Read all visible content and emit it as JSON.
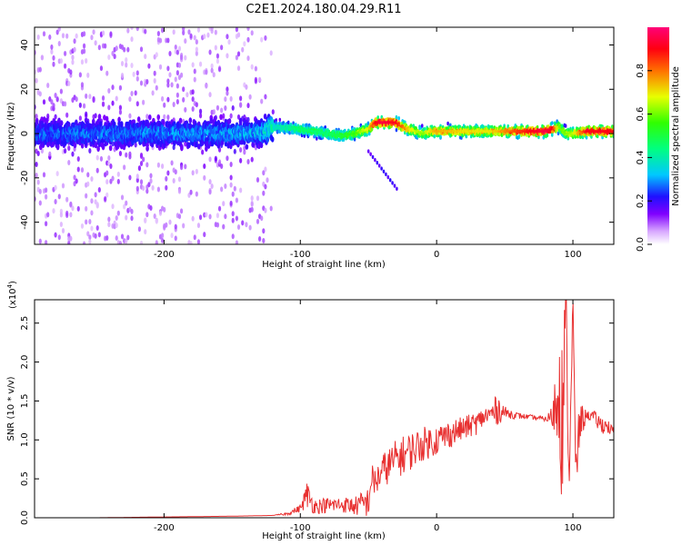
{
  "figure": {
    "title": "C2E1.2024.180.04.29.R11"
  },
  "chart_data": [
    {
      "type": "heatmap",
      "xlabel": "Height of straight line (km)",
      "ylabel": "Frequency (Hz)",
      "xlim": [
        -295,
        130
      ],
      "ylim": [
        -50,
        48
      ],
      "xticks": [
        -200,
        -100,
        0,
        100
      ],
      "yticks": [
        -40,
        -20,
        0,
        20,
        40
      ],
      "colorbar": {
        "label": "Normalized spectral amplitude",
        "range": [
          0.0,
          1.0
        ],
        "ticks": [
          0.0,
          0.2,
          0.4,
          0.6,
          0.8
        ],
        "tick_labels": [
          "0.0",
          "0.2",
          "0.4",
          "0.6",
          "0.8"
        ],
        "colormap": "rainbow (white→violet→blue→cyan→green→yellow→red→magenta)"
      },
      "ridge": {
        "description": "dominant frequency track (centre of the bright band)",
        "x": [
          -295,
          -200,
          -130,
          -120,
          -100,
          -80,
          -70,
          -60,
          -50,
          -45,
          -40,
          -30,
          -25,
          -20,
          -15,
          -10,
          -5,
          0,
          20,
          40,
          60,
          80,
          85,
          90,
          95,
          100,
          110,
          130
        ],
        "y": [
          0,
          0,
          0,
          3,
          2,
          0,
          -1,
          0,
          2,
          5,
          5,
          5,
          3,
          2,
          1,
          0,
          1,
          1,
          1,
          1,
          1,
          1,
          2,
          3,
          0,
          0,
          1,
          1
        ],
        "peak_amplitude": [
          0.2,
          0.22,
          0.25,
          0.35,
          0.45,
          0.45,
          0.5,
          0.55,
          0.7,
          0.9,
          0.95,
          0.9,
          0.8,
          0.7,
          0.65,
          0.6,
          0.7,
          0.75,
          0.7,
          0.7,
          0.85,
          0.95,
          0.9,
          0.6,
          0.6,
          0.65,
          0.9,
          0.9
        ]
      },
      "noise_region": {
        "description": "broadband scattered noise spanning the full frequency range",
        "x_range": [
          -295,
          -120
        ]
      }
    },
    {
      "type": "line",
      "xlabel": "Height of straight line (km)",
      "ylabel": "SNR (10 * v/v)",
      "yscale_label": "(x10",
      "yscale_exponent": "4",
      "xlim": [
        -295,
        130
      ],
      "ylim": [
        0.0,
        2.8
      ],
      "xticks": [
        -200,
        -100,
        0,
        100
      ],
      "yticks": [
        0.0,
        0.5,
        1.0,
        1.5,
        2.0,
        2.5
      ],
      "ytick_labels": [
        "0.0",
        "0.5",
        "1.0",
        "1.5",
        "2.0",
        "2.5"
      ],
      "series": [
        {
          "color": "#e83030",
          "x": [
            -295,
            -250,
            -200,
            -150,
            -120,
            -110,
            -100,
            -95,
            -90,
            -80,
            -70,
            -60,
            -50,
            -48,
            -45,
            -40,
            -30,
            -20,
            -10,
            0,
            10,
            20,
            30,
            35,
            40,
            45,
            50,
            60,
            70,
            80,
            85,
            88,
            90,
            92,
            95,
            97,
            100,
            102,
            105,
            110,
            115,
            120,
            125,
            130
          ],
          "y": [
            0.0,
            0.0,
            0.01,
            0.02,
            0.03,
            0.05,
            0.12,
            0.3,
            0.15,
            0.16,
            0.17,
            0.15,
            0.2,
            0.5,
            0.45,
            0.6,
            0.75,
            0.85,
            0.95,
            1.0,
            1.08,
            1.15,
            1.22,
            1.3,
            1.33,
            1.4,
            1.35,
            1.31,
            1.29,
            1.27,
            1.3,
            1.5,
            2.0,
            1.2,
            2.75,
            0.4,
            2.75,
            0.5,
            1.2,
            1.32,
            1.3,
            1.2,
            1.18,
            1.1
          ],
          "oscillation": [
            0,
            0,
            0,
            0,
            0,
            0.02,
            0.05,
            0.18,
            0.1,
            0.1,
            0.1,
            0.12,
            0.2,
            0.2,
            0.2,
            0.22,
            0.25,
            0.25,
            0.22,
            0.2,
            0.18,
            0.15,
            0.15,
            0.12,
            0.15,
            0.2,
            0.08,
            0.04,
            0.03,
            0.03,
            0.15,
            0.8,
            0.95,
            1.2,
            0.3,
            0.3,
            0.3,
            0.4,
            0.3,
            0.05,
            0.08,
            0.12,
            0.1,
            0.05
          ]
        }
      ]
    }
  ],
  "colors": {
    "line": "#e83030",
    "ridge_core": "#e8365a"
  }
}
